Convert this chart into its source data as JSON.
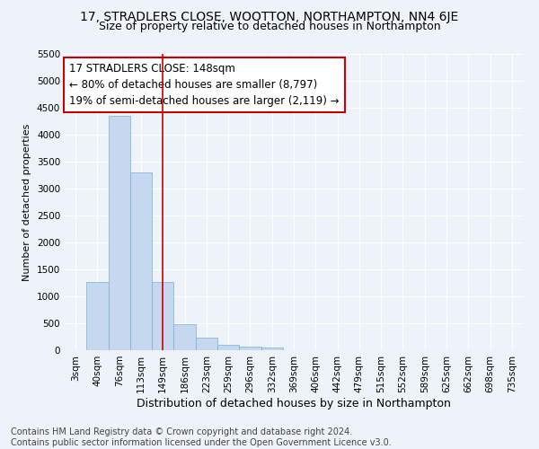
{
  "title": "17, STRADLERS CLOSE, WOOTTON, NORTHAMPTON, NN4 6JE",
  "subtitle": "Size of property relative to detached houses in Northampton",
  "xlabel": "Distribution of detached houses by size in Northampton",
  "ylabel": "Number of detached properties",
  "categories": [
    "3sqm",
    "40sqm",
    "76sqm",
    "113sqm",
    "149sqm",
    "186sqm",
    "223sqm",
    "259sqm",
    "296sqm",
    "332sqm",
    "369sqm",
    "406sqm",
    "442sqm",
    "479sqm",
    "515sqm",
    "552sqm",
    "589sqm",
    "625sqm",
    "662sqm",
    "698sqm",
    "735sqm"
  ],
  "values": [
    0,
    1270,
    4350,
    3300,
    1270,
    480,
    230,
    100,
    70,
    50,
    0,
    0,
    0,
    0,
    0,
    0,
    0,
    0,
    0,
    0,
    0
  ],
  "bar_color": "#c5d8f0",
  "bar_edge_color": "#7bafd4",
  "vline_x_index": 4,
  "vline_color": "#cc0000",
  "annotation_line1": "17 STRADLERS CLOSE: 148sqm",
  "annotation_line2": "← 80% of detached houses are smaller (8,797)",
  "annotation_line3": "19% of semi-detached houses are larger (2,119) →",
  "annotation_box_color": "#ffffff",
  "annotation_box_edge_color": "#cc0000",
  "ylim": [
    0,
    5500
  ],
  "yticks": [
    0,
    500,
    1000,
    1500,
    2000,
    2500,
    3000,
    3500,
    4000,
    4500,
    5000,
    5500
  ],
  "background_color": "#eef2f9",
  "grid_color": "#ffffff",
  "footer_text": "Contains HM Land Registry data © Crown copyright and database right 2024.\nContains public sector information licensed under the Open Government Licence v3.0.",
  "title_fontsize": 10,
  "subtitle_fontsize": 9,
  "xlabel_fontsize": 9,
  "ylabel_fontsize": 8,
  "tick_fontsize": 7.5,
  "footer_fontsize": 7,
  "annotation_fontsize": 8.5
}
